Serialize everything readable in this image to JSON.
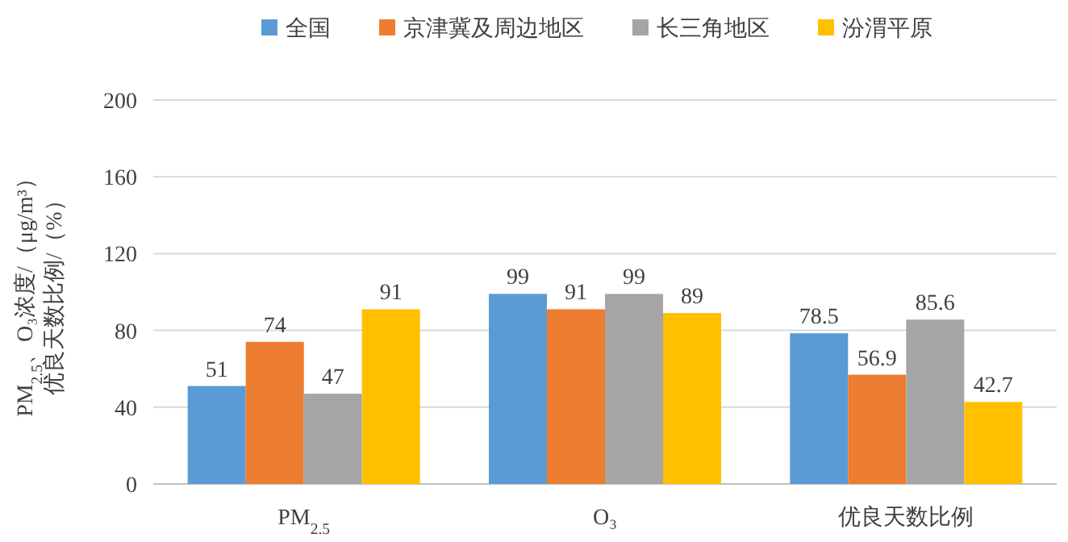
{
  "chart_data": {
    "type": "bar",
    "categories": [
      "PM$_{2.5}$",
      "O₃",
      "优良天数比例"
    ],
    "ylabel": "PM$_{2.5}$、O₃浓度/（μg/m³）优良天数比例/（%）",
    "series": [
      {
        "name": "全国",
        "color": "#5b9bd5",
        "values": [
          51,
          99,
          78.5
        ]
      },
      {
        "name": "京津冀及周边地区",
        "color": "#ed7d31",
        "values": [
          74,
          91,
          56.9
        ]
      },
      {
        "name": "长三角地区",
        "color": "#a5a5a5",
        "values": [
          47,
          99,
          85.6
        ]
      },
      {
        "name": "汾渭平原",
        "color": "#ffc000",
        "values": [
          91,
          89,
          42.7
        ]
      }
    ],
    "ylim": [
      0,
      200
    ],
    "yticks": [
      0,
      40,
      80,
      120,
      160,
      200
    ],
    "grid": "y",
    "legend": "top",
    "data_labels": true
  }
}
